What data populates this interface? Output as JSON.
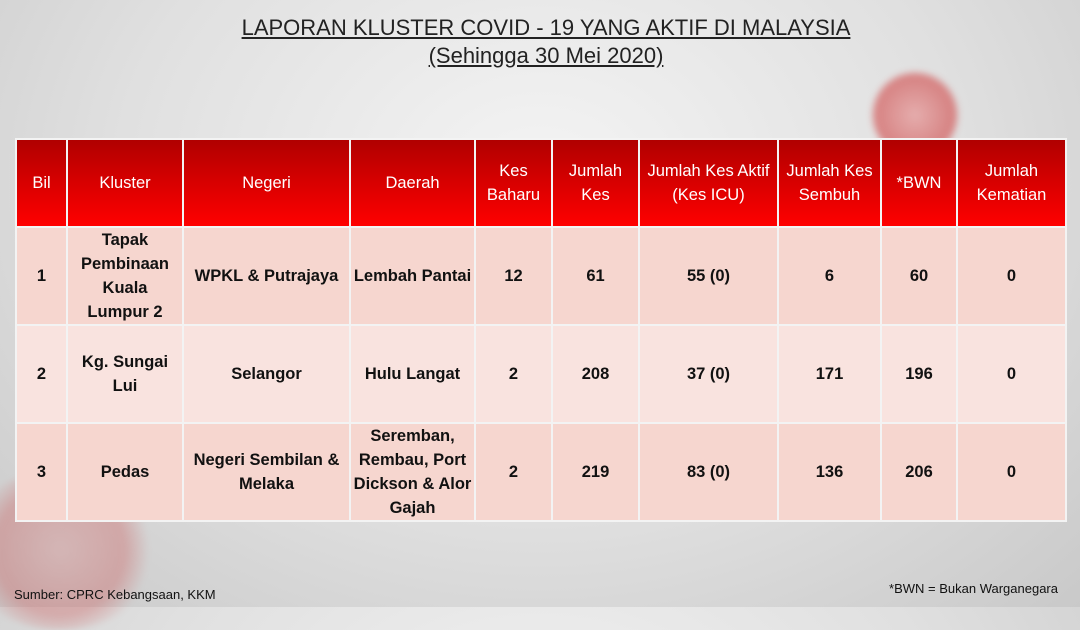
{
  "title": {
    "line1": "LAPORAN KLUSTER COVID - 19 YANG AKTIF DI MALAYSIA",
    "line2": "(Sehingga 30 Mei 2020)"
  },
  "table": {
    "headers": [
      "Bil",
      "Kluster",
      "Negeri",
      "Daerah",
      "Kes Baharu",
      "Jumlah Kes",
      "Jumlah Kes Aktif (Kes ICU)",
      "Jumlah Kes Sembuh",
      "*BWN",
      "Jumlah Kematian"
    ],
    "rows": [
      [
        "1",
        "Tapak Pembinaan Kuala Lumpur 2",
        "WPKL & Putrajaya",
        "Lembah Pantai",
        "12",
        "61",
        "55 (0)",
        "6",
        "60",
        "0"
      ],
      [
        "2",
        "Kg. Sungai Lui",
        "Selangor",
        "Hulu Langat",
        "2",
        "208",
        "37 (0)",
        "171",
        "196",
        "0"
      ],
      [
        "3",
        "Pedas",
        "Negeri Sembilan & Melaka",
        "Seremban, Rembau, Port Dickson & Alor Gajah",
        "2",
        "219",
        "83 (0)",
        "136",
        "206",
        "0"
      ]
    ]
  },
  "footer": {
    "source": "Sumber: CPRC Kebangsaan, KKM",
    "note": "*BWN = Bukan Warganegara"
  },
  "colors": {
    "header": "#e00000",
    "row_odd": "#f6d6cf",
    "row_even": "#f9e3df"
  }
}
